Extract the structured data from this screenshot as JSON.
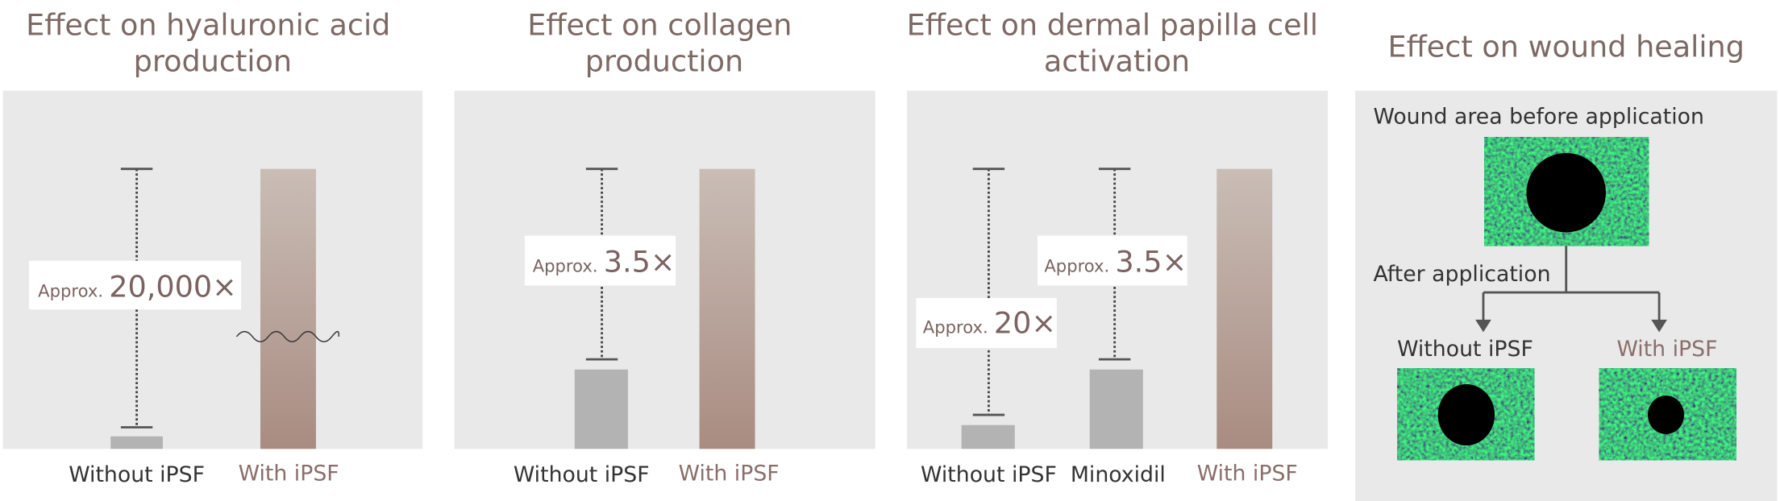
{
  "panels": [
    {
      "title": [
        "Effect on hyaluronic acid",
        "production"
      ],
      "annotations": [
        {
          "prefix": "Approx.",
          "value": "20,000×"
        }
      ],
      "labels": [
        "Without iPSF",
        "With iPSF"
      ]
    },
    {
      "title": [
        "Effect on collagen",
        "production"
      ],
      "annotations": [
        {
          "prefix": "Approx.",
          "value": "3.5×"
        }
      ],
      "labels": [
        "Without iPSF",
        "With iPSF"
      ]
    },
    {
      "title": [
        "Effect on dermal papilla cell",
        "activation"
      ],
      "annotations": [
        {
          "prefix": "Approx.",
          "value": "20×"
        },
        {
          "prefix": "Approx.",
          "value": "3.5×"
        }
      ],
      "labels": [
        "Without iPSF",
        "Minoxidil",
        "With iPSF"
      ]
    },
    {
      "title": [
        "Effect on wound healing"
      ],
      "before": "Wound area before application",
      "after": "After application",
      "labels": [
        "Without iPSF",
        "With iPSF"
      ]
    }
  ]
}
